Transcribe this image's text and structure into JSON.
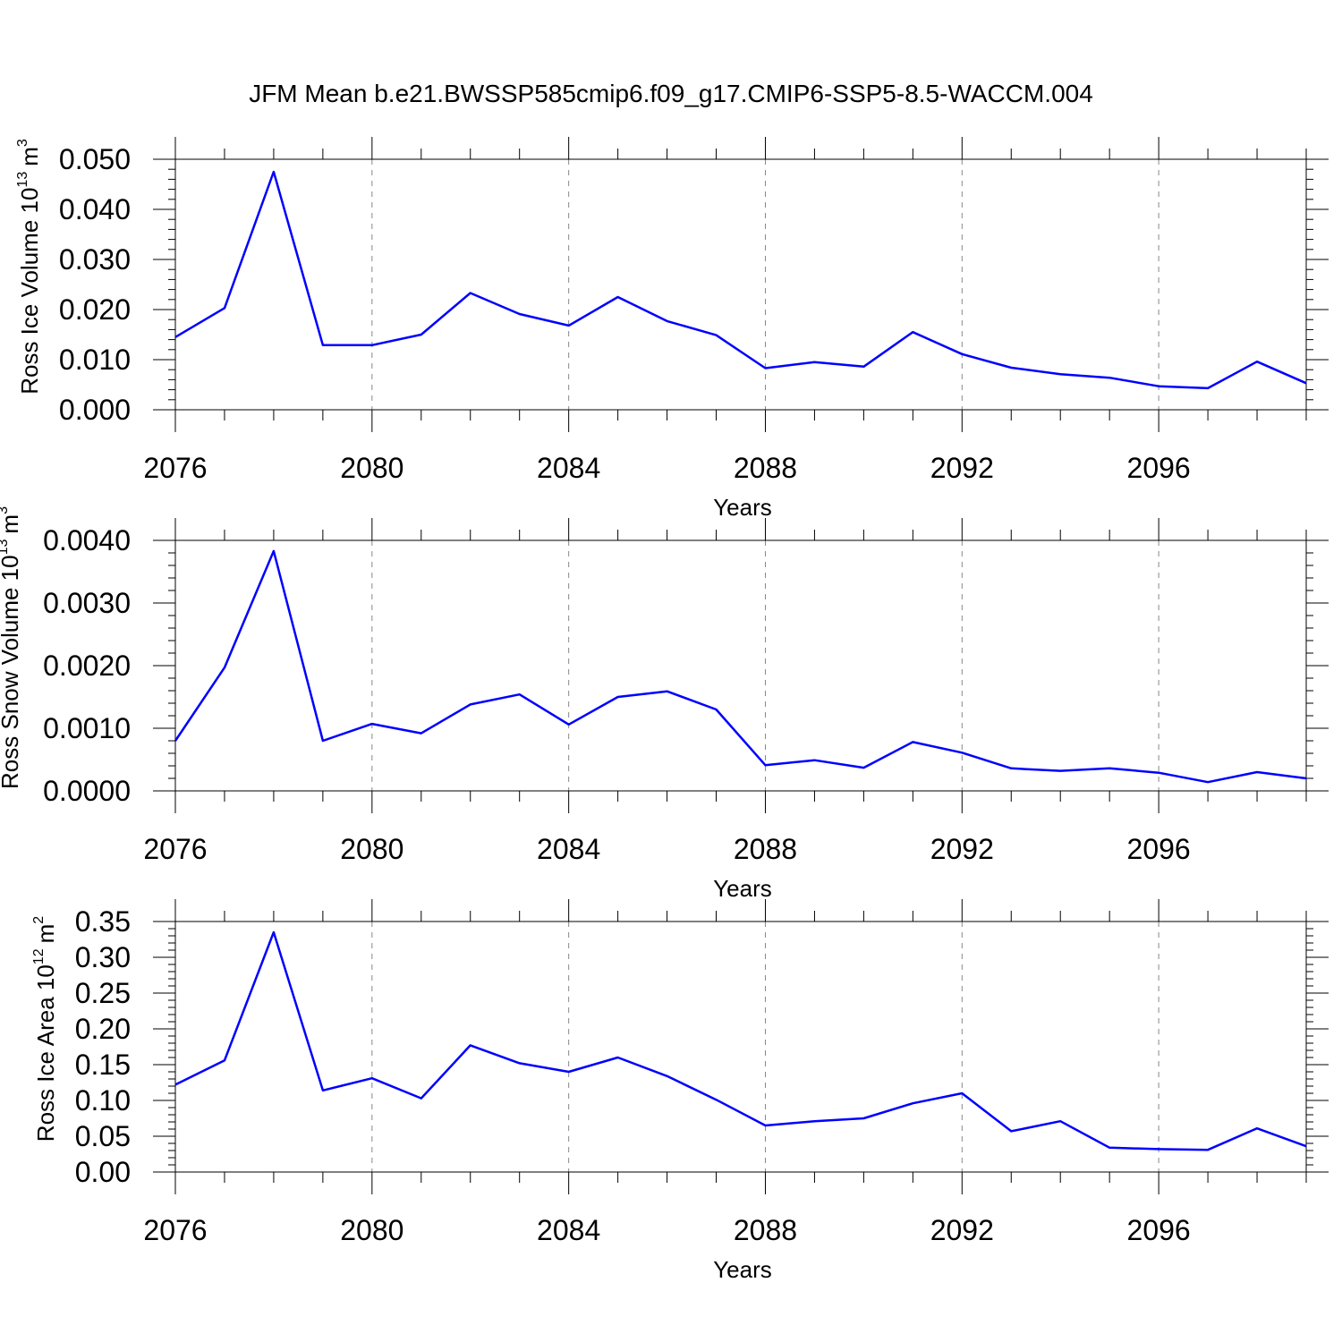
{
  "title": "JFM Mean b.e21.BWSSP585cmip6.f09_g17.CMIP6-SSP5-8.5-WACCM.004",
  "chart_data": [
    {
      "type": "line",
      "ylabel": "Ross Ice Volume 10",
      "ylabel_exp": "13",
      "ylabel_unit": "m",
      "ylabel_unit_exp": "3",
      "xlabel": "Years",
      "xlim": [
        2076,
        2099
      ],
      "ylim": [
        0,
        0.05
      ],
      "yticks": [
        "0.000",
        "0.010",
        "0.020",
        "0.030",
        "0.040",
        "0.050"
      ],
      "yminor_step": 0.002,
      "xticks": [
        "2076",
        "2080",
        "2084",
        "2088",
        "2092",
        "2096"
      ],
      "grid": "x-major-dashed",
      "color": "#0000ff",
      "x": [
        2076,
        2077,
        2078,
        2079,
        2080,
        2081,
        2082,
        2083,
        2084,
        2085,
        2086,
        2087,
        2088,
        2089,
        2090,
        2091,
        2092,
        2093,
        2094,
        2095,
        2096,
        2097,
        2098,
        2099
      ],
      "values": [
        0.0145,
        0.0203,
        0.0475,
        0.0129,
        0.0129,
        0.015,
        0.0233,
        0.0191,
        0.0168,
        0.0225,
        0.0177,
        0.0149,
        0.0083,
        0.0095,
        0.0086,
        0.0155,
        0.0111,
        0.0084,
        0.0071,
        0.0064,
        0.0047,
        0.0043,
        0.0096,
        0.0053
      ]
    },
    {
      "type": "line",
      "ylabel": "Ross Snow Volume 10",
      "ylabel_exp": "13",
      "ylabel_unit": "m",
      "ylabel_unit_exp": "3",
      "xlabel": "Years",
      "xlim": [
        2076,
        2099
      ],
      "ylim": [
        0,
        0.004
      ],
      "yticks": [
        "0.0000",
        "0.0010",
        "0.0020",
        "0.0030",
        "0.0040"
      ],
      "yminor_step": 0.0002,
      "xticks": [
        "2076",
        "2080",
        "2084",
        "2088",
        "2092",
        "2096"
      ],
      "grid": "x-major-dashed",
      "color": "#0000ff",
      "x": [
        2076,
        2077,
        2078,
        2079,
        2080,
        2081,
        2082,
        2083,
        2084,
        2085,
        2086,
        2087,
        2088,
        2089,
        2090,
        2091,
        2092,
        2093,
        2094,
        2095,
        2096,
        2097,
        2098,
        2099
      ],
      "values": [
        0.0008,
        0.00197,
        0.00383,
        0.0008,
        0.00107,
        0.00092,
        0.00138,
        0.00154,
        0.00106,
        0.0015,
        0.00159,
        0.0013,
        0.00041,
        0.00049,
        0.00037,
        0.00078,
        0.00061,
        0.00036,
        0.00032,
        0.00036,
        0.00029,
        0.00014,
        0.0003,
        0.0002
      ]
    },
    {
      "type": "line",
      "ylabel": "Ross Ice Area 10",
      "ylabel_exp": "12",
      "ylabel_unit": "m",
      "ylabel_unit_exp": "2",
      "xlabel": "Years",
      "xlim": [
        2076,
        2099
      ],
      "ylim": [
        0,
        0.35
      ],
      "yticks": [
        "0.00",
        "0.05",
        "0.10",
        "0.15",
        "0.20",
        "0.25",
        "0.30",
        "0.35"
      ],
      "yminor_step": 0.01,
      "xticks": [
        "2076",
        "2080",
        "2084",
        "2088",
        "2092",
        "2096"
      ],
      "grid": "x-major-dashed",
      "color": "#0000ff",
      "x": [
        2076,
        2077,
        2078,
        2079,
        2080,
        2081,
        2082,
        2083,
        2084,
        2085,
        2086,
        2087,
        2088,
        2089,
        2090,
        2091,
        2092,
        2093,
        2094,
        2095,
        2096,
        2097,
        2098,
        2099
      ],
      "values": [
        0.122,
        0.156,
        0.335,
        0.114,
        0.131,
        0.103,
        0.177,
        0.152,
        0.14,
        0.16,
        0.134,
        0.101,
        0.065,
        0.071,
        0.075,
        0.096,
        0.11,
        0.057,
        0.071,
        0.034,
        0.032,
        0.031,
        0.061,
        0.036
      ]
    }
  ]
}
